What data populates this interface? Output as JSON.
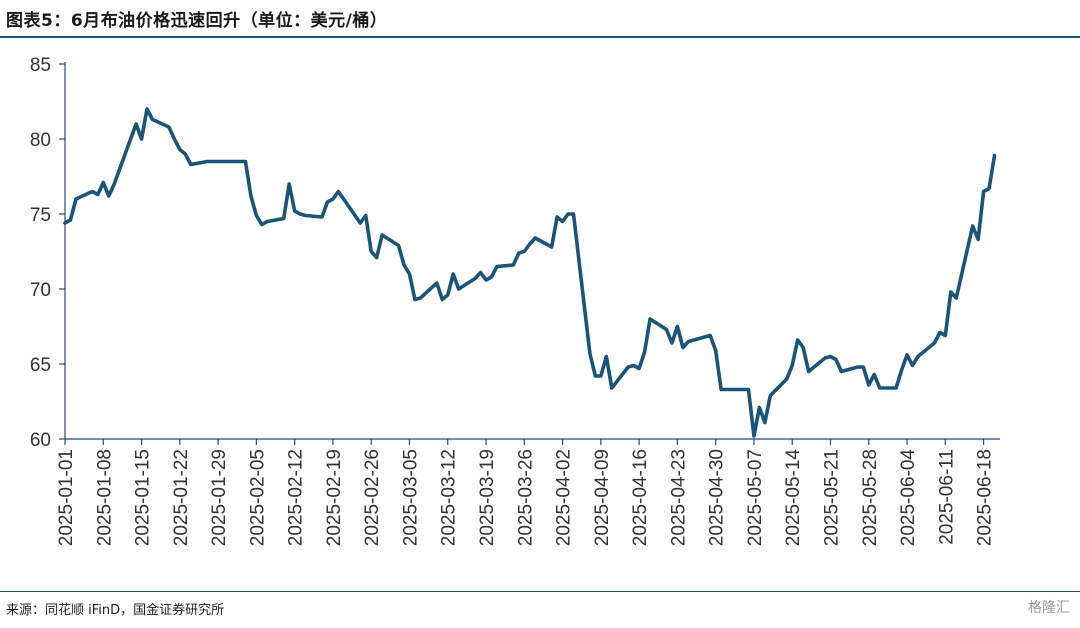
{
  "header": {
    "title": "图表5：6月布油价格迅速回升（单位：美元/桶）"
  },
  "footer": {
    "source": "来源：同花顺 iFinD，国金证券研究所",
    "watermark": "格隆汇"
  },
  "colors": {
    "line": "#1b5476",
    "axis": "#1f4e79",
    "text": "#333333"
  },
  "chart_data": {
    "type": "line",
    "title": "图表5：6月布油价格迅速回升（单位：美元/桶）",
    "xlabel": "",
    "ylabel": "",
    "ylim": [
      60,
      85
    ],
    "yticks": [
      60,
      65,
      70,
      75,
      80,
      85
    ],
    "x_range": [
      "2025-01-01",
      "2025-06-21"
    ],
    "xticks": [
      "2025-01-01",
      "2025-01-08",
      "2025-01-15",
      "2025-01-22",
      "2025-01-29",
      "2025-02-05",
      "2025-02-12",
      "2025-02-19",
      "2025-02-26",
      "2025-03-05",
      "2025-03-12",
      "2025-03-19",
      "2025-03-26",
      "2025-04-02",
      "2025-04-09",
      "2025-04-16",
      "2025-04-23",
      "2025-04-30",
      "2025-05-07",
      "2025-05-14",
      "2025-05-21",
      "2025-05-28",
      "2025-06-04",
      "2025-06-11",
      "2025-06-18"
    ],
    "grid": false,
    "legend": "none",
    "series": [
      {
        "name": "",
        "points": [
          [
            "2025-01-01",
            74.4
          ],
          [
            "2025-01-02",
            74.6
          ],
          [
            "2025-01-03",
            76.0
          ],
          [
            "2025-01-06",
            76.5
          ],
          [
            "2025-01-07",
            76.3
          ],
          [
            "2025-01-08",
            77.1
          ],
          [
            "2025-01-09",
            76.2
          ],
          [
            "2025-01-10",
            77.0
          ],
          [
            "2025-01-13",
            80.0
          ],
          [
            "2025-01-14",
            81.0
          ],
          [
            "2025-01-15",
            80.0
          ],
          [
            "2025-01-16",
            82.0
          ],
          [
            "2025-01-17",
            81.3
          ],
          [
            "2025-01-20",
            80.8
          ],
          [
            "2025-01-21",
            80.0
          ],
          [
            "2025-01-22",
            79.3
          ],
          [
            "2025-01-23",
            79.0
          ],
          [
            "2025-01-24",
            78.3
          ],
          [
            "2025-01-27",
            78.5
          ],
          [
            "2025-01-28",
            78.5
          ],
          [
            "2025-01-29",
            78.5
          ],
          [
            "2025-01-30",
            78.5
          ],
          [
            "2025-01-31",
            78.5
          ],
          [
            "2025-02-03",
            78.5
          ],
          [
            "2025-02-04",
            76.2
          ],
          [
            "2025-02-05",
            74.9
          ],
          [
            "2025-02-06",
            74.3
          ],
          [
            "2025-02-07",
            74.5
          ],
          [
            "2025-02-10",
            74.7
          ],
          [
            "2025-02-11",
            77.0
          ],
          [
            "2025-02-12",
            75.2
          ],
          [
            "2025-02-13",
            75.0
          ],
          [
            "2025-02-14",
            74.9
          ],
          [
            "2025-02-17",
            74.8
          ],
          [
            "2025-02-18",
            75.8
          ],
          [
            "2025-02-19",
            76.0
          ],
          [
            "2025-02-20",
            76.5
          ],
          [
            "2025-02-24",
            74.4
          ],
          [
            "2025-02-25",
            74.9
          ],
          [
            "2025-02-26",
            72.5
          ],
          [
            "2025-02-27",
            72.1
          ],
          [
            "2025-02-28",
            73.6
          ],
          [
            "2025-03-03",
            72.9
          ],
          [
            "2025-03-04",
            71.6
          ],
          [
            "2025-03-05",
            71.0
          ],
          [
            "2025-03-06",
            69.3
          ],
          [
            "2025-03-07",
            69.4
          ],
          [
            "2025-03-10",
            70.4
          ],
          [
            "2025-03-11",
            69.3
          ],
          [
            "2025-03-12",
            69.6
          ],
          [
            "2025-03-13",
            71.0
          ],
          [
            "2025-03-14",
            70.0
          ],
          [
            "2025-03-17",
            70.7
          ],
          [
            "2025-03-18",
            71.1
          ],
          [
            "2025-03-19",
            70.6
          ],
          [
            "2025-03-20",
            70.8
          ],
          [
            "2025-03-21",
            71.5
          ],
          [
            "2025-03-24",
            71.6
          ],
          [
            "2025-03-25",
            72.4
          ],
          [
            "2025-03-26",
            72.5
          ],
          [
            "2025-03-27",
            73.0
          ],
          [
            "2025-03-28",
            73.4
          ],
          [
            "2025-03-31",
            72.8
          ],
          [
            "2025-04-01",
            74.8
          ],
          [
            "2025-04-02",
            74.5
          ],
          [
            "2025-04-03",
            75.0
          ],
          [
            "2025-04-04",
            75.0
          ],
          [
            "2025-04-07",
            65.7
          ],
          [
            "2025-04-08",
            64.2
          ],
          [
            "2025-04-09",
            64.2
          ],
          [
            "2025-04-10",
            65.5
          ],
          [
            "2025-04-11",
            63.4
          ],
          [
            "2025-04-14",
            64.8
          ],
          [
            "2025-04-15",
            64.9
          ],
          [
            "2025-04-16",
            64.7
          ],
          [
            "2025-04-17",
            65.8
          ],
          [
            "2025-04-18",
            68.0
          ],
          [
            "2025-04-21",
            67.3
          ],
          [
            "2025-04-22",
            66.4
          ],
          [
            "2025-04-23",
            67.5
          ],
          [
            "2025-04-24",
            66.1
          ],
          [
            "2025-04-25",
            66.5
          ],
          [
            "2025-04-28",
            66.8
          ],
          [
            "2025-04-29",
            66.9
          ],
          [
            "2025-04-30",
            65.9
          ],
          [
            "2025-05-01",
            63.3
          ],
          [
            "2025-05-02",
            63.3
          ],
          [
            "2025-05-05",
            63.3
          ],
          [
            "2025-05-06",
            63.3
          ],
          [
            "2025-05-07",
            60.2
          ],
          [
            "2025-05-08",
            62.1
          ],
          [
            "2025-05-09",
            61.1
          ],
          [
            "2025-05-10",
            62.9
          ],
          [
            "2025-05-13",
            64.0
          ],
          [
            "2025-05-14",
            64.9
          ],
          [
            "2025-05-15",
            66.6
          ],
          [
            "2025-05-16",
            66.1
          ],
          [
            "2025-05-17",
            64.5
          ],
          [
            "2025-05-20",
            65.4
          ],
          [
            "2025-05-21",
            65.5
          ],
          [
            "2025-05-22",
            65.3
          ],
          [
            "2025-05-23",
            64.5
          ],
          [
            "2025-05-26",
            64.8
          ],
          [
            "2025-05-27",
            64.8
          ],
          [
            "2025-05-28",
            63.6
          ],
          [
            "2025-05-29",
            64.3
          ],
          [
            "2025-05-30",
            63.4
          ],
          [
            "2025-06-02",
            63.4
          ],
          [
            "2025-06-03",
            64.6
          ],
          [
            "2025-06-04",
            65.6
          ],
          [
            "2025-06-05",
            64.9
          ],
          [
            "2025-06-06",
            65.5
          ],
          [
            "2025-06-09",
            66.4
          ],
          [
            "2025-06-10",
            67.1
          ],
          [
            "2025-06-11",
            66.9
          ],
          [
            "2025-06-12",
            69.8
          ],
          [
            "2025-06-13",
            69.4
          ],
          [
            "2025-06-16",
            74.2
          ],
          [
            "2025-06-17",
            73.3
          ],
          [
            "2025-06-18",
            76.5
          ],
          [
            "2025-06-19",
            76.7
          ],
          [
            "2025-06-20",
            78.9
          ]
        ]
      }
    ]
  }
}
